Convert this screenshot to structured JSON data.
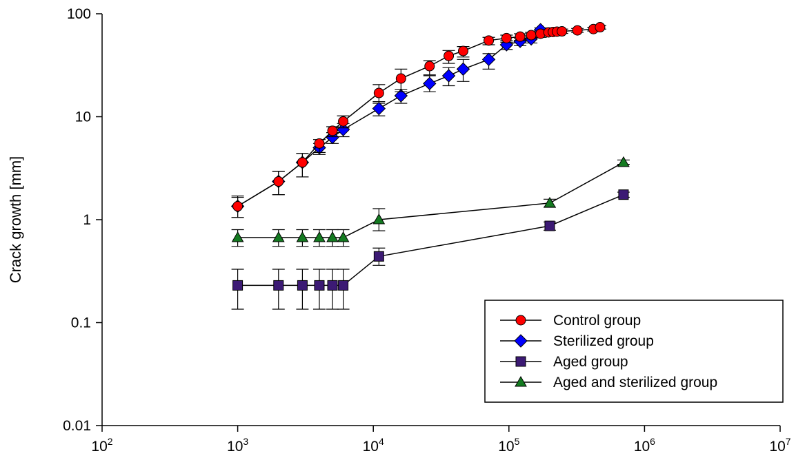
{
  "chart_data": {
    "type": "scatter",
    "title": "",
    "xlabel": "",
    "ylabel": "Crack growth [mm]",
    "x_scale": "log",
    "y_scale": "log",
    "xlim": [
      100,
      10000000
    ],
    "ylim": [
      0.01,
      100
    ],
    "x_ticks": [
      {
        "value": 100,
        "base": "10",
        "exp": "2"
      },
      {
        "value": 1000,
        "base": "10",
        "exp": "3"
      },
      {
        "value": 10000,
        "base": "10",
        "exp": "4"
      },
      {
        "value": 100000,
        "base": "10",
        "exp": "5"
      },
      {
        "value": 1000000,
        "base": "10",
        "exp": "6"
      },
      {
        "value": 10000000,
        "base": "10",
        "exp": "7"
      }
    ],
    "y_ticks": [
      {
        "value": 0.01,
        "label": "0.01"
      },
      {
        "value": 0.1,
        "label": "0.1"
      },
      {
        "value": 1,
        "label": "1"
      },
      {
        "value": 10,
        "label": "10"
      },
      {
        "value": 100,
        "label": "100"
      }
    ],
    "grid": false,
    "legend_position": "bottom-right",
    "series": [
      {
        "name": "Control group",
        "marker": "circle",
        "color": "#ff0000",
        "points": [
          {
            "x": 1000,
            "y": 1.35,
            "lo": 1.05,
            "hi": 1.7
          },
          {
            "x": 2000,
            "y": 2.35,
            "lo": 1.75,
            "hi": 2.95
          },
          {
            "x": 3000,
            "y": 3.6,
            "lo": 2.6,
            "hi": 4.4
          },
          {
            "x": 4000,
            "y": 5.5,
            "lo": 4.5,
            "hi": 6.0
          },
          {
            "x": 5000,
            "y": 7.3,
            "lo": 6.4,
            "hi": 8.0
          },
          {
            "x": 6000,
            "y": 9.0,
            "lo": 7.8,
            "hi": 10.2
          },
          {
            "x": 11000,
            "y": 17.0,
            "lo": 14.0,
            "hi": 20.5
          },
          {
            "x": 16000,
            "y": 23.5,
            "lo": 17.5,
            "hi": 29.0
          },
          {
            "x": 26000,
            "y": 31.0,
            "lo": 25.5,
            "hi": 35.0
          },
          {
            "x": 36000,
            "y": 39.0,
            "lo": 33.0,
            "hi": 44.0
          },
          {
            "x": 46000,
            "y": 43.5,
            "lo": 38.0,
            "hi": 48.0
          },
          {
            "x": 71000,
            "y": 55.0,
            "lo": 50.0,
            "hi": 59.0
          },
          {
            "x": 96000,
            "y": 58.0,
            "lo": 53.0,
            "hi": 62.0
          },
          {
            "x": 121000,
            "y": 60.0,
            "lo": 55.0,
            "hi": 64.0
          },
          {
            "x": 146000,
            "y": 62.0,
            "lo": 57.0,
            "hi": 66.0
          },
          {
            "x": 171000,
            "y": 64.0,
            "lo": 59.0,
            "hi": 68.0
          },
          {
            "x": 196000,
            "y": 66.0,
            "lo": 62.0,
            "hi": 70.0
          },
          {
            "x": 211000,
            "y": 66.5,
            "lo": 63.0,
            "hi": 70.0
          },
          {
            "x": 226000,
            "y": 67.0,
            "lo": 64.0,
            "hi": 70.5
          },
          {
            "x": 246000,
            "y": 67.5,
            "lo": 64.5,
            "hi": 71.0
          },
          {
            "x": 320000,
            "y": 69.0,
            "lo": 66.0,
            "hi": 72.0
          },
          {
            "x": 420000,
            "y": 71.0,
            "lo": 68.0,
            "hi": 74.0
          },
          {
            "x": 470000,
            "y": 74.0,
            "lo": 71.0,
            "hi": 77.0
          }
        ]
      },
      {
        "name": "Sterilized group",
        "marker": "diamond",
        "color": "#0000ff",
        "points": [
          {
            "x": 1000,
            "y": 1.35,
            "lo": 1.05,
            "hi": 1.65
          },
          {
            "x": 2000,
            "y": 2.35,
            "lo": 1.75,
            "hi": 2.95
          },
          {
            "x": 3000,
            "y": 3.6,
            "lo": 2.6,
            "hi": 4.4
          },
          {
            "x": 4000,
            "y": 5.0,
            "lo": 4.3,
            "hi": 5.5
          },
          {
            "x": 5000,
            "y": 6.3,
            "lo": 5.5,
            "hi": 7.0
          },
          {
            "x": 6000,
            "y": 7.5,
            "lo": 6.4,
            "hi": 8.6
          },
          {
            "x": 11000,
            "y": 12.0,
            "lo": 10.2,
            "hi": 13.5
          },
          {
            "x": 16000,
            "y": 16.0,
            "lo": 13.5,
            "hi": 18.5
          },
          {
            "x": 26000,
            "y": 21.0,
            "lo": 17.5,
            "hi": 25.0
          },
          {
            "x": 36000,
            "y": 25.0,
            "lo": 20.0,
            "hi": 30.0
          },
          {
            "x": 46000,
            "y": 29.0,
            "lo": 22.0,
            "hi": 36.0
          },
          {
            "x": 71000,
            "y": 36.0,
            "lo": 29.0,
            "hi": 41.0
          },
          {
            "x": 96000,
            "y": 50.0,
            "lo": 45.0,
            "hi": 55.0
          },
          {
            "x": 121000,
            "y": 54.0,
            "lo": 49.0,
            "hi": 58.0
          },
          {
            "x": 146000,
            "y": 57.0,
            "lo": 52.0,
            "hi": 61.0
          },
          {
            "x": 171000,
            "y": 70.0,
            "lo": 66.0,
            "hi": 73.0
          }
        ]
      },
      {
        "name": "Aged group",
        "marker": "square",
        "color": "#3c1a74",
        "points": [
          {
            "x": 1000,
            "y": 0.23,
            "lo": 0.135,
            "hi": 0.33
          },
          {
            "x": 2000,
            "y": 0.23,
            "lo": 0.135,
            "hi": 0.33
          },
          {
            "x": 3000,
            "y": 0.23,
            "lo": 0.135,
            "hi": 0.33
          },
          {
            "x": 4000,
            "y": 0.23,
            "lo": 0.135,
            "hi": 0.33
          },
          {
            "x": 5000,
            "y": 0.23,
            "lo": 0.135,
            "hi": 0.33
          },
          {
            "x": 6000,
            "y": 0.23,
            "lo": 0.135,
            "hi": 0.33
          },
          {
            "x": 11000,
            "y": 0.44,
            "lo": 0.36,
            "hi": 0.53
          },
          {
            "x": 200000,
            "y": 0.87,
            "lo": 0.79,
            "hi": 0.95
          },
          {
            "x": 700000,
            "y": 1.75,
            "lo": 1.65,
            "hi": 1.85
          }
        ]
      },
      {
        "name": "Aged and sterilized group",
        "marker": "triangle",
        "color": "#137a20",
        "points": [
          {
            "x": 1000,
            "y": 0.67,
            "lo": 0.55,
            "hi": 0.8
          },
          {
            "x": 2000,
            "y": 0.67,
            "lo": 0.55,
            "hi": 0.8
          },
          {
            "x": 3000,
            "y": 0.67,
            "lo": 0.55,
            "hi": 0.8
          },
          {
            "x": 4000,
            "y": 0.67,
            "lo": 0.55,
            "hi": 0.8
          },
          {
            "x": 5000,
            "y": 0.67,
            "lo": 0.55,
            "hi": 0.8
          },
          {
            "x": 6000,
            "y": 0.67,
            "lo": 0.55,
            "hi": 0.8
          },
          {
            "x": 11000,
            "y": 1.0,
            "lo": 0.78,
            "hi": 1.28
          },
          {
            "x": 200000,
            "y": 1.45,
            "lo": 1.32,
            "hi": 1.58
          },
          {
            "x": 700000,
            "y": 3.6,
            "lo": 3.45,
            "hi": 3.8
          }
        ]
      }
    ]
  }
}
